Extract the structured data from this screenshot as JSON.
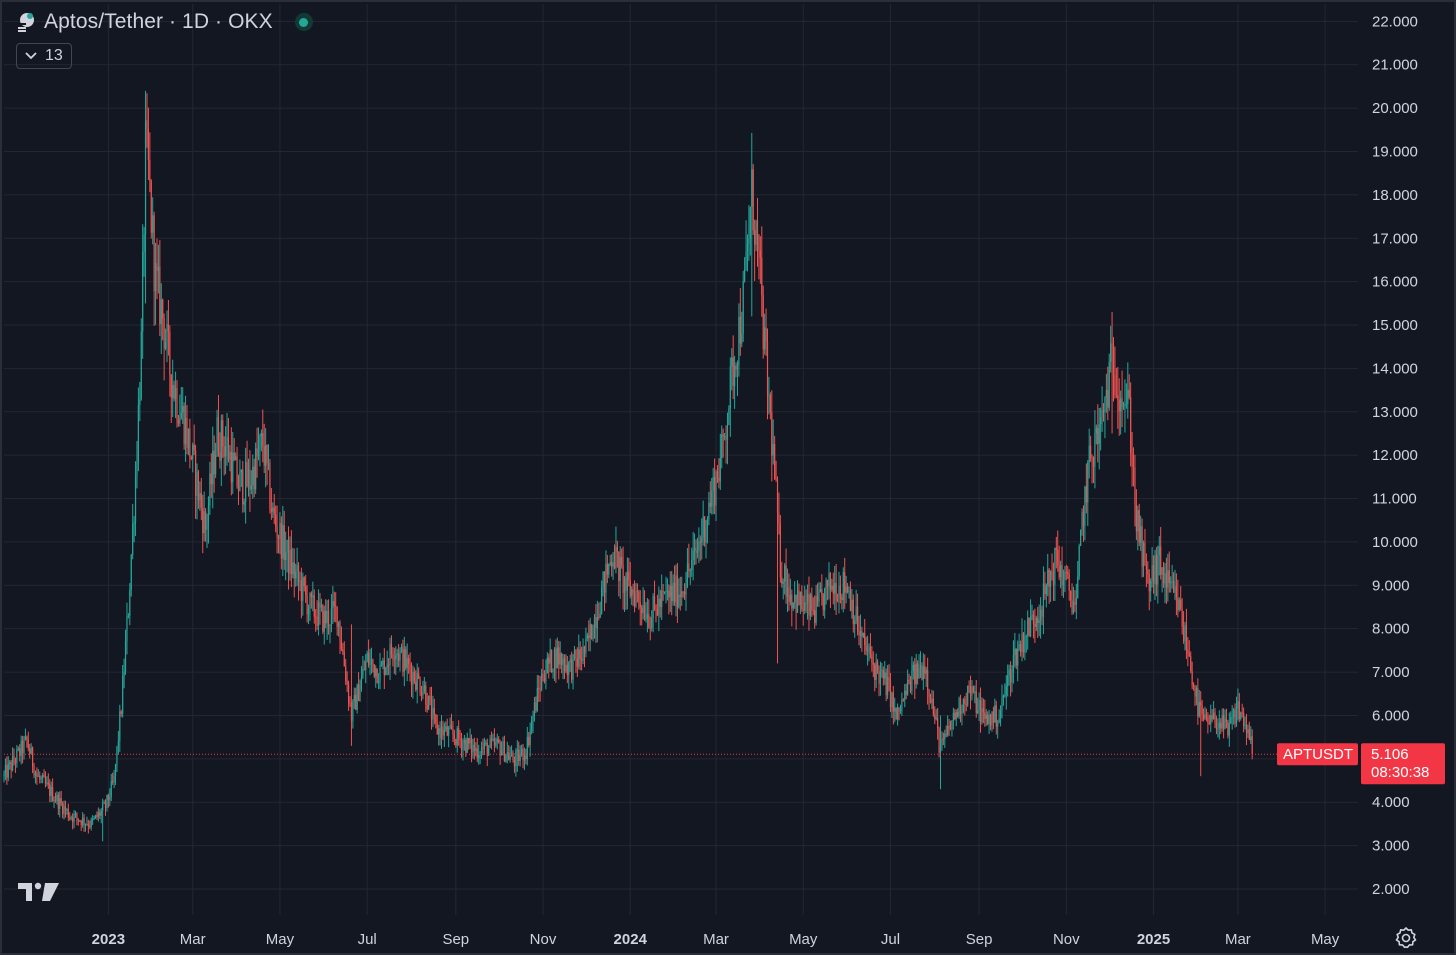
{
  "header": {
    "title": "Aptos/Tether · 1D · OKX",
    "indicators_count": "13"
  },
  "price_tags": {
    "symbol": "APTUSDT",
    "price": "5.106",
    "countdown": "08:30:38"
  },
  "colors": {
    "background": "#131722",
    "grid": "#242733",
    "up": "#26a69a",
    "down": "#ef5350",
    "last_price": "#f23645"
  },
  "chart_data": {
    "type": "candlestick",
    "symbol": "APTUSDT",
    "exchange": "OKX",
    "interval": "1D",
    "y_ticks": [
      "22.000",
      "21.000",
      "20.000",
      "19.000",
      "18.000",
      "17.000",
      "16.000",
      "15.000",
      "14.000",
      "13.000",
      "12.000",
      "11.000",
      "10.000",
      "9.000",
      "8.000",
      "7.000",
      "6.000",
      "5.000",
      "4.000",
      "3.000",
      "2.000"
    ],
    "ylim": [
      1.4,
      22.4
    ],
    "x_ticks": [
      {
        "label": "2023",
        "date": "2023-01-01",
        "major": true
      },
      {
        "label": "Mar",
        "date": "2023-03-01",
        "major": false
      },
      {
        "label": "May",
        "date": "2023-05-01",
        "major": false
      },
      {
        "label": "Jul",
        "date": "2023-07-01",
        "major": false
      },
      {
        "label": "Sep",
        "date": "2023-09-01",
        "major": false
      },
      {
        "label": "Nov",
        "date": "2023-11-01",
        "major": false
      },
      {
        "label": "2024",
        "date": "2024-01-01",
        "major": true
      },
      {
        "label": "Mar",
        "date": "2024-03-01",
        "major": false
      },
      {
        "label": "May",
        "date": "2024-05-01",
        "major": false
      },
      {
        "label": "Jul",
        "date": "2024-07-01",
        "major": false
      },
      {
        "label": "Sep",
        "date": "2024-09-01",
        "major": false
      },
      {
        "label": "Nov",
        "date": "2024-11-01",
        "major": false
      },
      {
        "label": "2025",
        "date": "2025-01-01",
        "major": true
      },
      {
        "label": "Mar",
        "date": "2025-03-01",
        "major": false
      },
      {
        "label": "May",
        "date": "2025-05-01",
        "major": false
      }
    ],
    "xlim": [
      "2022-10-20",
      "2025-05-24"
    ],
    "last_price": 5.106,
    "grid": true,
    "close_path": [
      [
        "2022-10-20",
        4.6
      ],
      [
        "2022-10-26",
        4.9
      ],
      [
        "2022-11-05",
        5.4
      ],
      [
        "2022-11-12",
        4.6
      ],
      [
        "2022-11-20",
        4.3
      ],
      [
        "2022-12-05",
        3.7
      ],
      [
        "2022-12-20",
        3.5
      ],
      [
        "2022-12-30",
        3.9
      ],
      [
        "2023-01-05",
        4.5
      ],
      [
        "2023-01-10",
        6.2
      ],
      [
        "2023-01-15",
        8.5
      ],
      [
        "2023-01-20",
        11.5
      ],
      [
        "2023-01-24",
        14.5
      ],
      [
        "2023-01-27",
        19.0
      ],
      [
        "2023-01-29",
        18.5
      ],
      [
        "2023-02-03",
        16.0
      ],
      [
        "2023-02-08",
        15.2
      ],
      [
        "2023-02-13",
        14.0
      ],
      [
        "2023-02-18",
        13.3
      ],
      [
        "2023-02-23",
        12.8
      ],
      [
        "2023-03-03",
        11.5
      ],
      [
        "2023-03-10",
        10.3
      ],
      [
        "2023-03-18",
        12.5
      ],
      [
        "2023-03-25",
        12.2
      ],
      [
        "2023-04-02",
        11.3
      ],
      [
        "2023-04-10",
        11.4
      ],
      [
        "2023-04-19",
        12.3
      ],
      [
        "2023-04-26",
        10.6
      ],
      [
        "2023-05-08",
        9.5
      ],
      [
        "2023-05-22",
        8.5
      ],
      [
        "2023-06-01",
        8.2
      ],
      [
        "2023-06-10",
        8.4
      ],
      [
        "2023-06-20",
        6.0
      ],
      [
        "2023-07-01",
        7.3
      ],
      [
        "2023-07-10",
        7.0
      ],
      [
        "2023-07-20",
        7.6
      ],
      [
        "2023-08-01",
        7.0
      ],
      [
        "2023-08-10",
        6.6
      ],
      [
        "2023-08-18",
        5.7
      ],
      [
        "2023-09-01",
        5.5
      ],
      [
        "2023-09-15",
        5.2
      ],
      [
        "2023-10-01",
        5.3
      ],
      [
        "2023-10-12",
        4.95
      ],
      [
        "2023-10-20",
        5.2
      ],
      [
        "2023-10-25",
        6.0
      ],
      [
        "2023-11-01",
        7.0
      ],
      [
        "2023-11-10",
        7.4
      ],
      [
        "2023-11-20",
        7.1
      ],
      [
        "2023-12-01",
        7.5
      ],
      [
        "2023-12-10",
        8.6
      ],
      [
        "2023-12-20",
        9.8
      ],
      [
        "2023-12-28",
        9.0
      ],
      [
        "2024-01-05",
        8.8
      ],
      [
        "2024-01-15",
        8.3
      ],
      [
        "2024-01-25",
        8.7
      ],
      [
        "2024-02-05",
        8.9
      ],
      [
        "2024-02-15",
        9.6
      ],
      [
        "2024-02-25",
        10.8
      ],
      [
        "2024-03-05",
        12.0
      ],
      [
        "2024-03-12",
        13.8
      ],
      [
        "2024-03-20",
        15.5
      ],
      [
        "2024-03-26",
        18.0
      ],
      [
        "2024-03-30",
        16.8
      ],
      [
        "2024-04-05",
        14.0
      ],
      [
        "2024-04-10",
        12.0
      ],
      [
        "2024-04-15",
        9.5
      ],
      [
        "2024-04-22",
        8.8
      ],
      [
        "2024-05-01",
        8.5
      ],
      [
        "2024-05-10",
        8.4
      ],
      [
        "2024-05-20",
        9.0
      ],
      [
        "2024-06-01",
        9.0
      ],
      [
        "2024-06-10",
        7.8
      ],
      [
        "2024-06-20",
        7.1
      ],
      [
        "2024-06-30",
        6.6
      ],
      [
        "2024-07-05",
        5.9
      ],
      [
        "2024-07-15",
        6.8
      ],
      [
        "2024-07-25",
        7.2
      ],
      [
        "2024-08-05",
        5.2
      ],
      [
        "2024-08-15",
        6.0
      ],
      [
        "2024-08-25",
        6.6
      ],
      [
        "2024-09-05",
        5.9
      ],
      [
        "2024-09-15",
        6.0
      ],
      [
        "2024-09-25",
        7.3
      ],
      [
        "2024-10-05",
        8.0
      ],
      [
        "2024-10-15",
        8.6
      ],
      [
        "2024-10-25",
        9.6
      ],
      [
        "2024-11-01",
        9.0
      ],
      [
        "2024-11-08",
        8.5
      ],
      [
        "2024-11-12",
        10.5
      ],
      [
        "2024-11-18",
        12.0
      ],
      [
        "2024-11-25",
        12.6
      ],
      [
        "2024-12-03",
        14.2
      ],
      [
        "2024-12-08",
        13.6
      ],
      [
        "2024-12-15",
        13.0
      ],
      [
        "2024-12-20",
        10.5
      ],
      [
        "2024-12-28",
        9.0
      ],
      [
        "2025-01-05",
        9.5
      ],
      [
        "2025-01-12",
        8.9
      ],
      [
        "2025-01-18",
        8.6
      ],
      [
        "2025-01-25",
        7.5
      ],
      [
        "2025-02-01",
        6.2
      ],
      [
        "2025-02-06",
        5.8
      ],
      [
        "2025-02-15",
        5.9
      ],
      [
        "2025-02-22",
        5.6
      ],
      [
        "2025-03-01",
        6.2
      ],
      [
        "2025-03-06",
        5.8
      ],
      [
        "2025-03-09",
        5.5
      ],
      [
        "2025-03-11",
        5.106
      ]
    ],
    "highlights": [
      {
        "date": "2023-01-27",
        "high": 20.4,
        "low": 15.5
      },
      {
        "date": "2024-03-26",
        "high": 19.3,
        "low": 15.2
      },
      {
        "date": "2024-12-03",
        "high": 15.3,
        "low": 12.5
      },
      {
        "date": "2024-08-05",
        "high": 6.0,
        "low": 4.3
      },
      {
        "date": "2025-02-03",
        "high": 6.2,
        "low": 4.6
      },
      {
        "date": "2022-12-28",
        "high": 3.9,
        "low": 3.1
      },
      {
        "date": "2023-10-14",
        "high": 5.2,
        "low": 4.7
      },
      {
        "date": "2024-04-13",
        "high": 10.4,
        "low": 7.2
      },
      {
        "date": "2023-06-20",
        "high": 8.1,
        "low": 5.3
      }
    ]
  }
}
